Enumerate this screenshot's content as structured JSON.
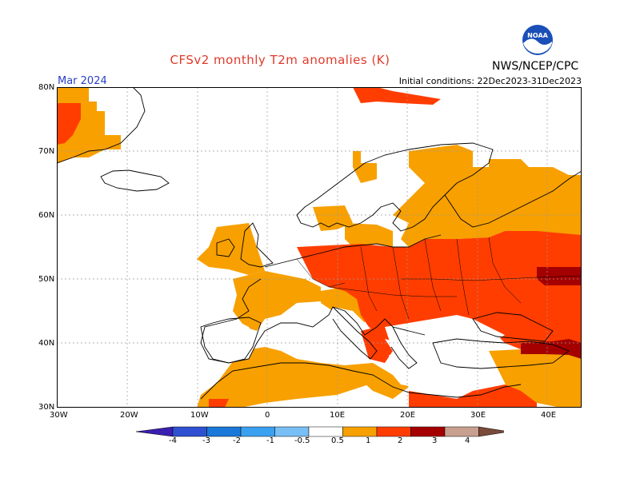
{
  "header": {
    "title": "CFSv2 monthly T2m anomalies (K)",
    "month": "Mar 2024",
    "initial_conditions": "Initial conditions: 22Dec2023-31Dec2023",
    "agency": "NWS/NCEP/CPC",
    "logo_text": "NOAA"
  },
  "axes": {
    "lat_labels": [
      "80N",
      "70N",
      "60N",
      "50N",
      "40N",
      "30N"
    ],
    "lon_labels": [
      "30W",
      "20W",
      "10W",
      "0",
      "10E",
      "20E",
      "30E",
      "40E"
    ]
  },
  "colorbar": {
    "labels": [
      "-4",
      "-3",
      "-2",
      "-1",
      "-0.5",
      "0.5",
      "1",
      "2",
      "3",
      "4"
    ],
    "colors": [
      "#3a1fb0",
      "#2f50d0",
      "#1a78d8",
      "#3aa0f0",
      "#78bff5",
      "#ffffff",
      "#f7a000",
      "#ff3d00",
      "#a50000",
      "#c8a090",
      "#7a4a3a"
    ]
  },
  "anomaly_colors": {
    "0.5-1": "#f7a000",
    "1-2": "#ff3d00",
    "2-3": "#a50000"
  }
}
